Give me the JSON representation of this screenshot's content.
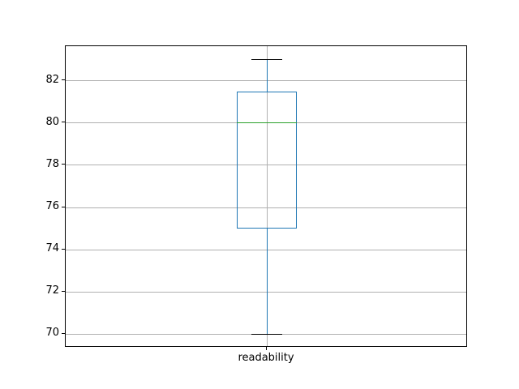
{
  "figure": {
    "background": "#ffffff"
  },
  "chart_data": {
    "type": "boxplot",
    "title": "",
    "categories": [
      "readability"
    ],
    "series": [
      {
        "name": "readability",
        "whisker_low": 70,
        "q1": 75,
        "median": 80,
        "q3": 81.5,
        "whisker_high": 83,
        "outliers": []
      }
    ],
    "ylim": [
      69.35,
      83.65
    ],
    "yticks": [
      70,
      72,
      74,
      76,
      78,
      80,
      82
    ],
    "xlabel": "",
    "ylabel": "",
    "grid": true,
    "legend": "none",
    "colors": {
      "box": "#1f77b4",
      "whisker": "#1f77b4",
      "cap": "#000000",
      "median": "#2ca02c",
      "grid": "#b0b0b0",
      "spine": "#000000",
      "text": "#000000"
    }
  }
}
